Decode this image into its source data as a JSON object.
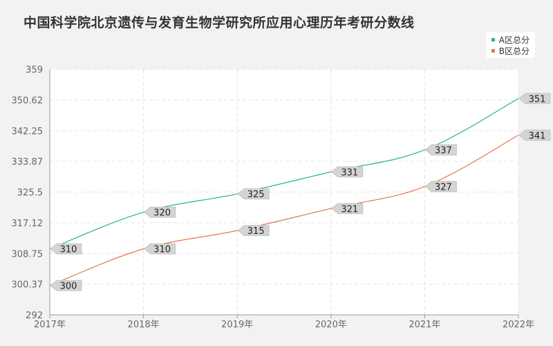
{
  "title": "中国科学院北京遗传与发育生物学研究所应用心理历年考研分数线",
  "legend": {
    "items": [
      {
        "label": "A区总分",
        "color": "#26b38c"
      },
      {
        "label": "B区总分",
        "color": "#e0784a"
      }
    ]
  },
  "chart_data": {
    "type": "line",
    "title": "中国科学院北京遗传与发育生物学研究所应用心理历年考研分数线",
    "categories": [
      "2017年",
      "2018年",
      "2019年",
      "2020年",
      "2021年",
      "2022年"
    ],
    "series": [
      {
        "name": "A区总分",
        "color": "#26b38c",
        "values": [
          310,
          320,
          325,
          331,
          337,
          351
        ]
      },
      {
        "name": "B区总分",
        "color": "#e0784a",
        "values": [
          300,
          310,
          315,
          321,
          327,
          341
        ]
      }
    ],
    "yticks": [
      "292",
      "300.37",
      "308.75",
      "317.12",
      "325.5",
      "333.87",
      "342.25",
      "350.62",
      "359"
    ],
    "ylim": [
      292,
      359
    ],
    "grid": true,
    "legend_position": "top-right",
    "xlabel": "",
    "ylabel": ""
  }
}
